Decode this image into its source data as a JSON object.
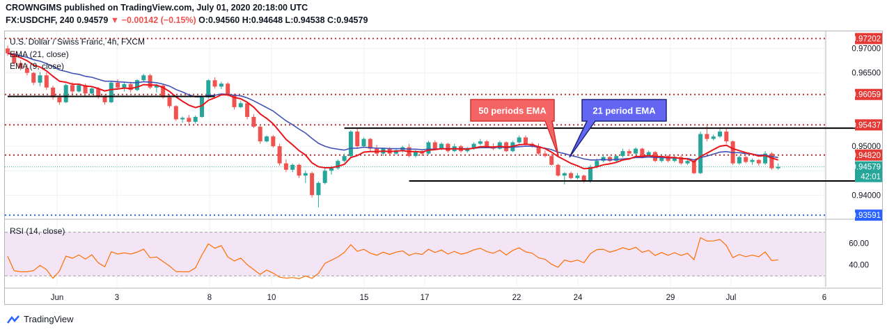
{
  "header": {
    "line1": "CROWNGIMS published on TradingView.com, July 01, 2020 20:18:00 UTC",
    "symbol": "FX:USDCHF, 240",
    "last": "0.94579",
    "change": "−0.00142 (−0.15%)",
    "ohlc": "O:0.94560 H:0.94648 L:0.94538 C:0.94579"
  },
  "legend": {
    "title": "U.S. Dollar / Swiss Franc, 4h, FXCM",
    "ema21": "EMA (21, close)",
    "ema9": "EMA (9, close)",
    "rsi": "RSI (14, close)"
  },
  "annotations": {
    "ema50_label": "50 periods EMA",
    "ema21_label": "21 period EMA"
  },
  "price_labels": [
    {
      "text": "0.97202",
      "value": 0.97202,
      "style": "red"
    },
    {
      "text": "0.97000",
      "value": 0.97,
      "style": "plain"
    },
    {
      "text": "0.96500",
      "value": 0.965,
      "style": "plain"
    },
    {
      "text": "0.96059",
      "value": 0.96059,
      "style": "red"
    },
    {
      "text": "0.95437",
      "value": 0.95437,
      "style": "red"
    },
    {
      "text": "0.95000",
      "value": 0.95,
      "style": "plain"
    },
    {
      "text": "0.94820",
      "value": 0.9482,
      "style": "red"
    },
    {
      "text": "0.94579",
      "value": 0.94579,
      "style": "green"
    },
    {
      "text": "42:01",
      "value": 0.9438,
      "style": "green"
    },
    {
      "text": "0.94000",
      "value": 0.94,
      "style": "plain"
    },
    {
      "text": "0.93591",
      "value": 0.93591,
      "style": "blue"
    }
  ],
  "rsi_labels": [
    {
      "text": "60.00",
      "value": 60
    },
    {
      "text": "40.00",
      "value": 40
    }
  ],
  "x_labels": [
    "Jun",
    "3",
    "8",
    "10",
    "15",
    "17",
    "22",
    "24",
    "29",
    "Jul",
    "6"
  ],
  "brand": "TradingView",
  "colors": {
    "up": "#26a69a",
    "down": "#ef5350",
    "ema9": "#e8161b",
    "ema21": "#3f51b5",
    "rsi": "#ff6d00",
    "level": "#c62828",
    "rsi_band": "#f3e5f5"
  },
  "chart_data": {
    "type": "candlestick",
    "title": "U.S. Dollar / Swiss Franc, 4h, FXCM",
    "x_ticks": [
      "Jun",
      "3",
      "8",
      "10",
      "15",
      "17",
      "22",
      "24",
      "29",
      "Jul",
      "6"
    ],
    "ylim": [
      0.9355,
      0.9735
    ],
    "horizontal_levels": [
      0.97202,
      0.96059,
      0.95437,
      0.9482,
      0.93591
    ],
    "support_resistance_lines": [
      {
        "from_bar": 0,
        "to_bar": 32,
        "value": 0.9602
      },
      {
        "from_bar": 52,
        "to_bar": 131,
        "value": 0.9537
      },
      {
        "from_bar": 62,
        "to_bar": 131,
        "value": 0.9429
      }
    ],
    "last_price": 0.94579,
    "candles": [
      [
        0.97,
        0.9706,
        0.9685,
        0.969
      ],
      [
        0.969,
        0.9693,
        0.9665,
        0.967
      ],
      [
        0.967,
        0.9676,
        0.9655,
        0.966
      ],
      [
        0.966,
        0.9668,
        0.9645,
        0.965
      ],
      [
        0.965,
        0.9652,
        0.9625,
        0.963
      ],
      [
        0.963,
        0.9652,
        0.9623,
        0.9645
      ],
      [
        0.9645,
        0.9651,
        0.9615,
        0.962
      ],
      [
        0.962,
        0.9624,
        0.9595,
        0.96
      ],
      [
        0.96,
        0.9605,
        0.9585,
        0.959
      ],
      [
        0.959,
        0.9628,
        0.9588,
        0.9625
      ],
      [
        0.9625,
        0.9631,
        0.9607,
        0.9612
      ],
      [
        0.9612,
        0.9628,
        0.961,
        0.9625
      ],
      [
        0.9625,
        0.9628,
        0.9602,
        0.9608
      ],
      [
        0.9608,
        0.9621,
        0.9605,
        0.9618
      ],
      [
        0.9618,
        0.9621,
        0.9597,
        0.9601
      ],
      [
        0.9601,
        0.9605,
        0.9585,
        0.959
      ],
      [
        0.959,
        0.9633,
        0.9588,
        0.963
      ],
      [
        0.963,
        0.9637,
        0.9616,
        0.962
      ],
      [
        0.962,
        0.963,
        0.9612,
        0.9627
      ],
      [
        0.9627,
        0.9632,
        0.961,
        0.9615
      ],
      [
        0.9615,
        0.9637,
        0.9613,
        0.9635
      ],
      [
        0.9635,
        0.9648,
        0.9632,
        0.9645
      ],
      [
        0.9645,
        0.9648,
        0.9617,
        0.962
      ],
      [
        0.962,
        0.9627,
        0.961,
        0.9624
      ],
      [
        0.9624,
        0.9628,
        0.9597,
        0.96
      ],
      [
        0.96,
        0.9606,
        0.9578,
        0.9582
      ],
      [
        0.9582,
        0.9584,
        0.9552,
        0.9555
      ],
      [
        0.9555,
        0.9561,
        0.9548,
        0.9558
      ],
      [
        0.9558,
        0.9564,
        0.9546,
        0.955
      ],
      [
        0.955,
        0.9563,
        0.9546,
        0.956
      ],
      [
        0.956,
        0.9603,
        0.9558,
        0.96
      ],
      [
        0.96,
        0.9637,
        0.9597,
        0.9635
      ],
      [
        0.9635,
        0.9641,
        0.9618,
        0.9622
      ],
      [
        0.9622,
        0.9632,
        0.9617,
        0.9628
      ],
      [
        0.9628,
        0.9631,
        0.9602,
        0.9605
      ],
      [
        0.9605,
        0.9608,
        0.9575,
        0.958
      ],
      [
        0.958,
        0.9592,
        0.9578,
        0.9588
      ],
      [
        0.9588,
        0.9591,
        0.9555,
        0.956
      ],
      [
        0.956,
        0.9566,
        0.9537,
        0.954
      ],
      [
        0.954,
        0.9545,
        0.9505,
        0.951
      ],
      [
        0.951,
        0.9522,
        0.9508,
        0.952
      ],
      [
        0.952,
        0.9523,
        0.9497,
        0.95
      ],
      [
        0.95,
        0.9505,
        0.946,
        0.9465
      ],
      [
        0.9465,
        0.9473,
        0.9448,
        0.9452
      ],
      [
        0.9452,
        0.9465,
        0.9447,
        0.9462
      ],
      [
        0.9462,
        0.9464,
        0.9435,
        0.944
      ],
      [
        0.944,
        0.945,
        0.9425,
        0.9445
      ],
      [
        0.9445,
        0.9448,
        0.9395,
        0.94
      ],
      [
        0.94,
        0.9428,
        0.9375,
        0.9425
      ],
      [
        0.9425,
        0.9455,
        0.9422,
        0.945
      ],
      [
        0.945,
        0.946,
        0.9442,
        0.9455
      ],
      [
        0.9455,
        0.9473,
        0.9452,
        0.947
      ],
      [
        0.947,
        0.9485,
        0.9467,
        0.948
      ],
      [
        0.948,
        0.9533,
        0.9478,
        0.953
      ],
      [
        0.953,
        0.9537,
        0.9495,
        0.95
      ],
      [
        0.95,
        0.9518,
        0.9497,
        0.9515
      ],
      [
        0.9515,
        0.9517,
        0.949,
        0.9495
      ],
      [
        0.9495,
        0.9503,
        0.9482,
        0.9485
      ],
      [
        0.9485,
        0.9497,
        0.948,
        0.9495
      ],
      [
        0.9495,
        0.9498,
        0.948,
        0.9485
      ],
      [
        0.9485,
        0.9496,
        0.9482,
        0.9492
      ],
      [
        0.9492,
        0.9501,
        0.9487,
        0.9498
      ],
      [
        0.9498,
        0.9505,
        0.9477,
        0.948
      ],
      [
        0.948,
        0.9492,
        0.9477,
        0.949
      ],
      [
        0.949,
        0.9493,
        0.948,
        0.9485
      ],
      [
        0.9485,
        0.9511,
        0.9483,
        0.9508
      ],
      [
        0.9508,
        0.9512,
        0.9492,
        0.9495
      ],
      [
        0.9495,
        0.9508,
        0.9492,
        0.9505
      ],
      [
        0.9505,
        0.9507,
        0.9487,
        0.949
      ],
      [
        0.949,
        0.9505,
        0.9488,
        0.95
      ],
      [
        0.95,
        0.9503,
        0.9487,
        0.949
      ],
      [
        0.949,
        0.9498,
        0.9487,
        0.9495
      ],
      [
        0.9495,
        0.9508,
        0.9493,
        0.9505
      ],
      [
        0.9505,
        0.9515,
        0.9502,
        0.951
      ],
      [
        0.951,
        0.9513,
        0.9497,
        0.95
      ],
      [
        0.95,
        0.9506,
        0.9492,
        0.9495
      ],
      [
        0.9495,
        0.9511,
        0.9493,
        0.9508
      ],
      [
        0.9508,
        0.951,
        0.9488,
        0.949
      ],
      [
        0.949,
        0.9511,
        0.9488,
        0.9508
      ],
      [
        0.9508,
        0.9522,
        0.9505,
        0.9518
      ],
      [
        0.9518,
        0.9522,
        0.9502,
        0.9505
      ],
      [
        0.9505,
        0.9508,
        0.9497,
        0.95
      ],
      [
        0.95,
        0.9506,
        0.9482,
        0.9485
      ],
      [
        0.9485,
        0.9491,
        0.9477,
        0.948
      ],
      [
        0.948,
        0.9485,
        0.946,
        0.9462
      ],
      [
        0.9462,
        0.9464,
        0.9438,
        0.944
      ],
      [
        0.944,
        0.9447,
        0.9422,
        0.9445
      ],
      [
        0.9445,
        0.9448,
        0.9432,
        0.9435
      ],
      [
        0.9435,
        0.9445,
        0.9432,
        0.944
      ],
      [
        0.944,
        0.9442,
        0.9425,
        0.9428
      ],
      [
        0.9428,
        0.9462,
        0.9425,
        0.9458
      ],
      [
        0.9458,
        0.9475,
        0.9455,
        0.947
      ],
      [
        0.947,
        0.9482,
        0.9467,
        0.9478
      ],
      [
        0.9478,
        0.948,
        0.9467,
        0.947
      ],
      [
        0.947,
        0.9482,
        0.9467,
        0.948
      ],
      [
        0.948,
        0.9495,
        0.9477,
        0.949
      ],
      [
        0.949,
        0.9494,
        0.948,
        0.9485
      ],
      [
        0.9485,
        0.9498,
        0.9482,
        0.9495
      ],
      [
        0.9495,
        0.9497,
        0.9475,
        0.948
      ],
      [
        0.948,
        0.9491,
        0.9478,
        0.9488
      ],
      [
        0.9488,
        0.949,
        0.9467,
        0.947
      ],
      [
        0.947,
        0.9484,
        0.9467,
        0.948
      ],
      [
        0.948,
        0.9482,
        0.9467,
        0.947
      ],
      [
        0.947,
        0.9481,
        0.9467,
        0.9478
      ],
      [
        0.9478,
        0.9481,
        0.9462,
        0.9465
      ],
      [
        0.9465,
        0.9475,
        0.9462,
        0.947
      ],
      [
        0.947,
        0.9472,
        0.9443,
        0.9445
      ],
      [
        0.9445,
        0.953,
        0.9443,
        0.9525
      ],
      [
        0.9525,
        0.9543,
        0.951,
        0.9515
      ],
      [
        0.9515,
        0.9524,
        0.9512,
        0.952
      ],
      [
        0.952,
        0.9535,
        0.9517,
        0.953
      ],
      [
        0.953,
        0.9536,
        0.9505,
        0.951
      ],
      [
        0.951,
        0.9512,
        0.9462,
        0.9465
      ],
      [
        0.9465,
        0.9481,
        0.9462,
        0.9478
      ],
      [
        0.9478,
        0.948,
        0.9465,
        0.9468
      ],
      [
        0.9468,
        0.9475,
        0.9462,
        0.9472
      ],
      [
        0.9472,
        0.9474,
        0.946,
        0.9465
      ],
      [
        0.9465,
        0.949,
        0.9462,
        0.9485
      ],
      [
        0.9485,
        0.9488,
        0.9452,
        0.9455
      ],
      [
        0.9455,
        0.9465,
        0.9452,
        0.9458
      ]
    ],
    "ema9": [
      0.969,
      0.9686,
      0.9681,
      0.9675,
      0.9666,
      0.9662,
      0.9654,
      0.9643,
      0.9633,
      0.9631,
      0.9627,
      0.9627,
      0.9623,
      0.9622,
      0.9618,
      0.9613,
      0.9616,
      0.9617,
      0.9619,
      0.9618,
      0.9621,
      0.9626,
      0.9625,
      0.9625,
      0.962,
      0.9612,
      0.9601,
      0.9592,
      0.9584,
      0.9579,
      0.9583,
      0.9594,
      0.9599,
      0.9605,
      0.9605,
      0.96,
      0.9597,
      0.959,
      0.958,
      0.9566,
      0.9557,
      0.9546,
      0.953,
      0.9514,
      0.9503,
      0.9491,
      0.9482,
      0.9466,
      0.9458,
      0.9456,
      0.9456,
      0.9459,
      0.9463,
      0.9477,
      0.9481,
      0.9488,
      0.9489,
      0.9489,
      0.949,
      0.9489,
      0.949,
      0.9491,
      0.9489,
      0.9489,
      0.9488,
      0.9492,
      0.9493,
      0.9495,
      0.9494,
      0.9495,
      0.9494,
      0.9494,
      0.9496,
      0.9499,
      0.9499,
      0.9498,
      0.95,
      0.9498,
      0.95,
      0.9503,
      0.9504,
      0.9503,
      0.9499,
      0.9495,
      0.9488,
      0.9479,
      0.9472,
      0.9465,
      0.946,
      0.9454,
      0.9455,
      0.9458,
      0.9462,
      0.9464,
      0.9467,
      0.9472,
      0.9474,
      0.9479,
      0.9479,
      0.9481,
      0.9479,
      0.9479,
      0.9477,
      0.9477,
      0.9475,
      0.9474,
      0.9468,
      0.9479,
      0.9486,
      0.9493,
      0.95,
      0.9502,
      0.9495,
      0.9491,
      0.9487,
      0.9484,
      0.948,
      0.9481,
      0.9476,
      0.9472
    ],
    "ema21": [
      0.969,
      0.9688,
      0.9685,
      0.9682,
      0.9677,
      0.9674,
      0.9669,
      0.9663,
      0.9656,
      0.9653,
      0.9649,
      0.9647,
      0.9643,
      0.9641,
      0.9637,
      0.9633,
      0.9633,
      0.9632,
      0.9631,
      0.963,
      0.963,
      0.9632,
      0.9631,
      0.963,
      0.9627,
      0.9623,
      0.9616,
      0.9611,
      0.9605,
      0.9601,
      0.9601,
      0.9604,
      0.9604,
      0.9607,
      0.9606,
      0.9604,
      0.9603,
      0.9599,
      0.9593,
      0.9586,
      0.9579,
      0.9572,
      0.9562,
      0.9552,
      0.9544,
      0.9535,
      0.9527,
      0.9516,
      0.9506,
      0.95,
      0.9496,
      0.9494,
      0.9492,
      0.9496,
      0.9496,
      0.9498,
      0.9497,
      0.9496,
      0.9496,
      0.9495,
      0.9495,
      0.9495,
      0.9494,
      0.9494,
      0.9493,
      0.9494,
      0.9494,
      0.9495,
      0.9495,
      0.9495,
      0.9495,
      0.9495,
      0.9496,
      0.9497,
      0.9497,
      0.9497,
      0.9498,
      0.9497,
      0.9498,
      0.9499,
      0.95,
      0.95,
      0.9498,
      0.9496,
      0.9493,
      0.9488,
      0.9485,
      0.9481,
      0.9478,
      0.9474,
      0.9472,
      0.9472,
      0.9473,
      0.9472,
      0.9473,
      0.9474,
      0.9475,
      0.9477,
      0.9477,
      0.9478,
      0.9477,
      0.9477,
      0.9476,
      0.9476,
      0.9475,
      0.9475,
      0.9472,
      0.9477,
      0.948,
      0.9484,
      0.9488,
      0.9489,
      0.9487,
      0.9487,
      0.9485,
      0.9484,
      0.9482,
      0.9482,
      0.9479,
      0.9477
    ],
    "rsi": [
      47.9,
      34.7,
      33.7,
      33.7,
      34.9,
      39.6,
      35.7,
      27.8,
      34.4,
      48.1,
      46.2,
      49.2,
      45.4,
      49.3,
      41.9,
      38.3,
      52.1,
      50.0,
      51.1,
      50.0,
      51.8,
      54.5,
      46.6,
      47.3,
      43.1,
      39.0,
      33.9,
      33.7,
      33.7,
      37.3,
      49.2,
      59.3,
      55.3,
      57.7,
      47.3,
      43.7,
      46.3,
      40.3,
      35.7,
      31.3,
      35.4,
      32.5,
      28.8,
      27.9,
      28.5,
      27.4,
      29.9,
      27.7,
      32.3,
      41.5,
      44.4,
      47.4,
      51.5,
      58.6,
      52.5,
      54.4,
      50.8,
      48.9,
      51.7,
      49.6,
      51.8,
      52.9,
      48.8,
      50.8,
      49.6,
      54.4,
      51.4,
      53.7,
      50.0,
      52.5,
      49.9,
      51.3,
      53.8,
      55.3,
      52.3,
      50.7,
      53.6,
      49.1,
      53.3,
      55.7,
      52.0,
      50.8,
      46.5,
      45.2,
      40.6,
      37.9,
      44.5,
      42.9,
      44.5,
      42.0,
      50.4,
      54.1,
      54.4,
      51.7,
      53.5,
      55.8,
      54.0,
      56.2,
      51.5,
      53.4,
      48.7,
      51.4,
      48.8,
      51.3,
      48.7,
      50.7,
      44.8,
      65.0,
      61.9,
      62.0,
      63.4,
      57.8,
      46.7,
      49.6,
      47.6,
      49.0,
      47.6,
      51.9,
      44.0,
      44.7
    ]
  }
}
